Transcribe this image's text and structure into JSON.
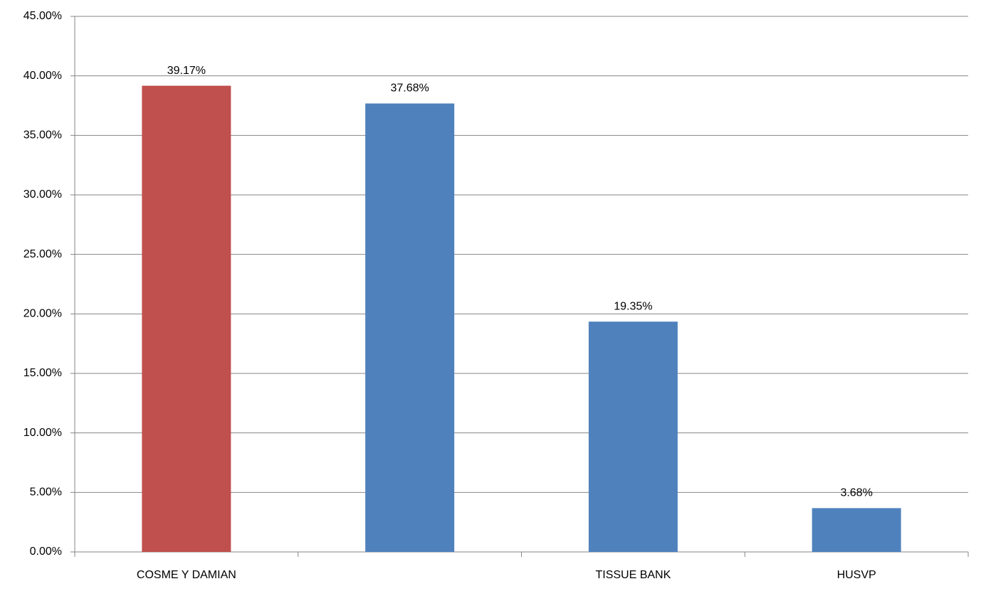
{
  "chart_data": {
    "type": "bar",
    "categories": [
      "COSME Y DAMIAN",
      null,
      "TISSUE BANK",
      "HUSVP"
    ],
    "values": [
      39.17,
      37.68,
      19.35,
      3.68
    ],
    "value_labels": [
      "39.17%",
      "37.68%",
      "19.35%",
      "3.68%"
    ],
    "colors": [
      "#c0504d",
      "#4f81bd",
      "#4f81bd",
      "#4f81bd"
    ],
    "ylim": [
      0,
      45
    ],
    "yticks": [
      {
        "value": 0,
        "label": "0.00%"
      },
      {
        "value": 5,
        "label": "5.00%"
      },
      {
        "value": 10,
        "label": "10.00%"
      },
      {
        "value": 15,
        "label": "15.00%"
      },
      {
        "value": 20,
        "label": "20.00%"
      },
      {
        "value": 25,
        "label": "25.00%"
      },
      {
        "value": 30,
        "label": "30.00%"
      },
      {
        "value": 35,
        "label": "35.00%"
      },
      {
        "value": 40,
        "label": "40.00%"
      },
      {
        "value": 45,
        "label": "45.00%"
      }
    ],
    "grid": true
  }
}
